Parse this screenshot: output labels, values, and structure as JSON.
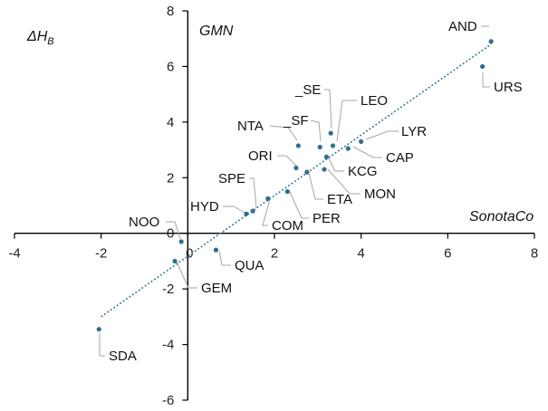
{
  "chart_data": {
    "type": "scatter",
    "title": "",
    "xlabel": "SonotaCo",
    "ylabel": "GMN",
    "corner_label": "ΔH",
    "corner_label_sub": "B",
    "xlim": [
      -4,
      8
    ],
    "ylim": [
      -6,
      8
    ],
    "xticks": [
      -4,
      -2,
      0,
      2,
      4,
      6,
      8
    ],
    "yticks": [
      -6,
      -4,
      -2,
      0,
      2,
      4,
      6,
      8
    ],
    "grid": false,
    "point_color": "#2e6f8e",
    "trendline": {
      "style": "dotted",
      "x": [
        -2.0,
        7.0
      ],
      "y": [
        -3.0,
        6.8
      ]
    },
    "points": [
      {
        "label": "AND",
        "x": 7.0,
        "y": 6.9
      },
      {
        "label": "URS",
        "x": 6.8,
        "y": 6.0
      },
      {
        "label": "_SE",
        "x": 3.3,
        "y": 3.6
      },
      {
        "label": "LEO",
        "x": 3.35,
        "y": 3.15
      },
      {
        "label": "_SF",
        "x": 3.05,
        "y": 3.1
      },
      {
        "label": "NTA",
        "x": 2.55,
        "y": 3.15
      },
      {
        "label": "LYR",
        "x": 4.0,
        "y": 3.3
      },
      {
        "label": "CAP",
        "x": 3.7,
        "y": 3.05
      },
      {
        "label": "KCG",
        "x": 3.2,
        "y": 2.75
      },
      {
        "label": "ORI",
        "x": 2.5,
        "y": 2.35
      },
      {
        "label": "ETA",
        "x": 2.75,
        "y": 2.2
      },
      {
        "label": "MON",
        "x": 3.15,
        "y": 2.3
      },
      {
        "label": "SPE",
        "x": 1.5,
        "y": 0.8
      },
      {
        "label": "HYD",
        "x": 1.35,
        "y": 0.7
      },
      {
        "label": "COM",
        "x": 1.85,
        "y": 1.25
      },
      {
        "label": "PER",
        "x": 2.3,
        "y": 1.5
      },
      {
        "label": "NOO",
        "x": -0.15,
        "y": -0.3
      },
      {
        "label": "QUA",
        "x": 0.65,
        "y": -0.6
      },
      {
        "label": "GEM",
        "x": -0.3,
        "y": -1.0
      },
      {
        "label": "SDA",
        "x": -2.05,
        "y": -3.45
      }
    ]
  }
}
